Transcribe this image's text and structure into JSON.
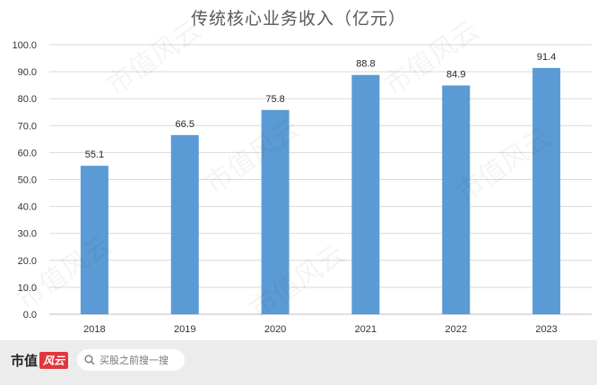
{
  "chart_data": {
    "type": "bar",
    "title": "传统核心业务收入（亿元）",
    "categories": [
      "2018",
      "2019",
      "2020",
      "2021",
      "2022",
      "2023"
    ],
    "values": [
      55.1,
      66.5,
      75.8,
      88.8,
      84.9,
      91.4
    ],
    "value_labels": [
      "55.1",
      "66.5",
      "75.8",
      "88.8",
      "84.9",
      "91.4"
    ],
    "y_ticks": [
      "0.0",
      "10.0",
      "20.0",
      "30.0",
      "40.0",
      "50.0",
      "60.0",
      "70.0",
      "80.0",
      "90.0",
      "100.0"
    ],
    "ylim": [
      0,
      100
    ],
    "grid": true,
    "bar_color": "#5b9bd5"
  },
  "footer": {
    "brand": "市值",
    "brand_badge": "风云",
    "search_placeholder": "买股之前搜一搜"
  },
  "watermark": "市值风云"
}
